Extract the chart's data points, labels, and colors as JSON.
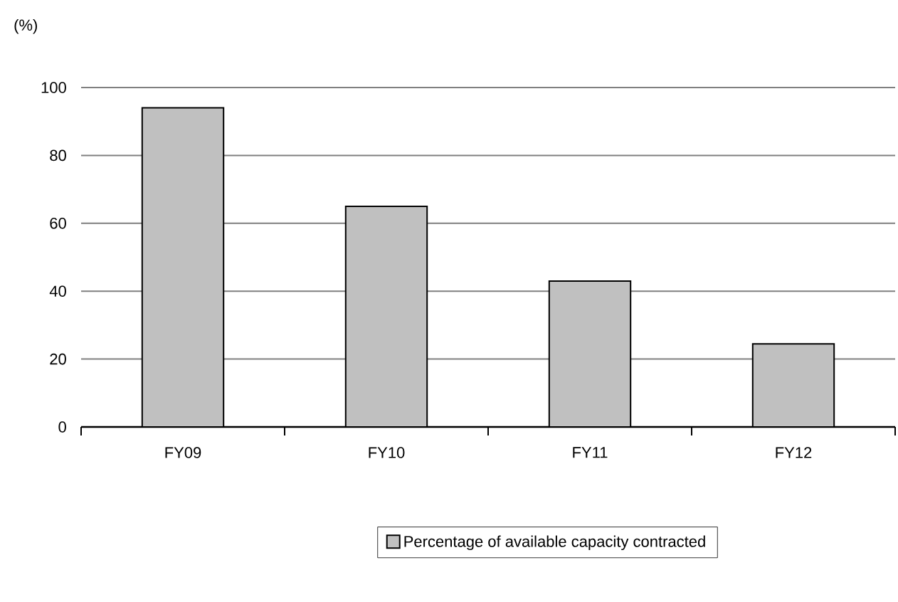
{
  "chart_data": {
    "type": "bar",
    "ylabel": "(%)",
    "categories": [
      "FY09",
      "FY10",
      "FY11",
      "FY12"
    ],
    "series": [
      {
        "name": "Percentage of available capacity contracted",
        "color": "#c0c0c0",
        "values": [
          94,
          65,
          43,
          24.5
        ]
      }
    ],
    "ylim": [
      0,
      100
    ],
    "yticks": [
      0,
      20,
      40,
      60,
      80,
      100
    ],
    "grid": "y",
    "legend": "bottom"
  }
}
